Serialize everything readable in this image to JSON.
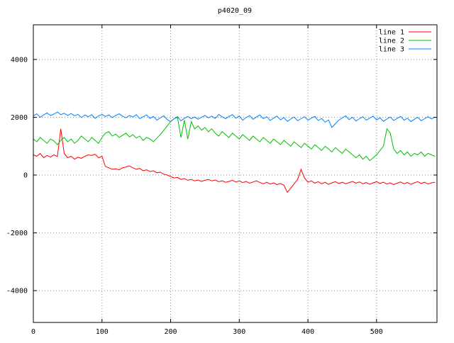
{
  "title": "p4020_09",
  "chart_data": {
    "type": "line",
    "title": "p4020_09",
    "xlabel": "",
    "ylabel": "",
    "xlim": [
      0,
      588
    ],
    "ylim": [
      -5100,
      5200
    ],
    "xticks": [
      0,
      100,
      200,
      300,
      400,
      500
    ],
    "yticks": [
      -4000,
      -2000,
      0,
      2000,
      4000
    ],
    "grid": true,
    "legend_position": "top-right",
    "x_start": 0,
    "x_step": 5,
    "series": [
      {
        "name": "line 1",
        "color": "#ff0000",
        "values": [
          700,
          650,
          750,
          600,
          680,
          620,
          700,
          640,
          1600,
          750,
          600,
          650,
          550,
          620,
          580,
          650,
          700,
          680,
          720,
          600,
          650,
          300,
          250,
          200,
          220,
          180,
          250,
          280,
          320,
          250,
          200,
          230,
          150,
          180,
          120,
          150,
          80,
          100,
          30,
          0,
          -50,
          -100,
          -80,
          -150,
          -120,
          -180,
          -150,
          -200,
          -170,
          -220,
          -180,
          -150,
          -200,
          -170,
          -230,
          -200,
          -250,
          -220,
          -180,
          -240,
          -200,
          -260,
          -220,
          -280,
          -240,
          -200,
          -260,
          -300,
          -250,
          -310,
          -270,
          -330,
          -290,
          -350,
          -600,
          -450,
          -300,
          -150,
          200,
          -100,
          -250,
          -200,
          -280,
          -230,
          -300,
          -250,
          -320,
          -270,
          -230,
          -290,
          -250,
          -300,
          -260,
          -220,
          -280,
          -240,
          -300,
          -260,
          -320,
          -270,
          -230,
          -290,
          -250,
          -310,
          -270,
          -330,
          -280,
          -240,
          -300,
          -260,
          -320,
          -270,
          -230,
          -290,
          -250,
          -310,
          -270,
          -250
        ]
      },
      {
        "name": "line 2",
        "color": "#00c000",
        "values": [
          1250,
          1150,
          1300,
          1200,
          1100,
          1250,
          1180,
          1050,
          1200,
          1300,
          1150,
          1250,
          1100,
          1200,
          1350,
          1250,
          1150,
          1300,
          1200,
          1100,
          1300,
          1450,
          1500,
          1350,
          1420,
          1300,
          1380,
          1450,
          1320,
          1400,
          1280,
          1350,
          1200,
          1300,
          1250,
          1150,
          1280,
          1400,
          1550,
          1700,
          1850,
          1950,
          2000,
          1300,
          1900,
          1250,
          1850,
          1600,
          1700,
          1550,
          1650,
          1500,
          1600,
          1450,
          1350,
          1500,
          1400,
          1300,
          1450,
          1350,
          1250,
          1400,
          1300,
          1200,
          1350,
          1250,
          1150,
          1300,
          1200,
          1100,
          1250,
          1150,
          1050,
          1200,
          1100,
          1000,
          1150,
          1050,
          950,
          1100,
          1000,
          900,
          1050,
          950,
          850,
          1000,
          900,
          800,
          950,
          850,
          750,
          900,
          800,
          700,
          600,
          700,
          550,
          650,
          500,
          600,
          700,
          850,
          1000,
          1600,
          1450,
          900,
          750,
          850,
          700,
          800,
          650,
          750,
          700,
          800,
          650,
          750,
          700,
          650
        ]
      },
      {
        "name": "line 3",
        "color": "#0080ff",
        "values": [
          2050,
          2120,
          2000,
          2080,
          2150,
          2060,
          2110,
          2180,
          2090,
          2140,
          2060,
          2130,
          2050,
          2100,
          1990,
          2080,
          2020,
          2090,
          1960,
          2050,
          2100,
          2030,
          2080,
          1990,
          2060,
          2120,
          2040,
          1980,
          2060,
          2010,
          2090,
          1950,
          2020,
          2080,
          1960,
          2030,
          1900,
          1980,
          2050,
          1920,
          1850,
          1950,
          2020,
          1880,
          1960,
          2030,
          1950,
          2010,
          1930,
          2000,
          2060,
          1980,
          2040,
          1960,
          2100,
          2020,
          1950,
          2030,
          2090,
          1970,
          2040,
          1900,
          1990,
          2060,
          1930,
          2010,
          2080,
          1950,
          2020,
          1890,
          1970,
          2040,
          1910,
          1990,
          1860,
          1940,
          2010,
          1880,
          1950,
          2020,
          1900,
          1970,
          2030,
          1890,
          1960,
          1830,
          1910,
          1650,
          1780,
          1900,
          1980,
          2050,
          1920,
          2000,
          1870,
          1950,
          2020,
          1900,
          1970,
          2040,
          1910,
          1980,
          1860,
          1940,
          2010,
          1890,
          1960,
          2030,
          1900,
          1970,
          1850,
          1930,
          2000,
          1880,
          1950,
          2020,
          1940,
          2010
        ]
      }
    ]
  }
}
